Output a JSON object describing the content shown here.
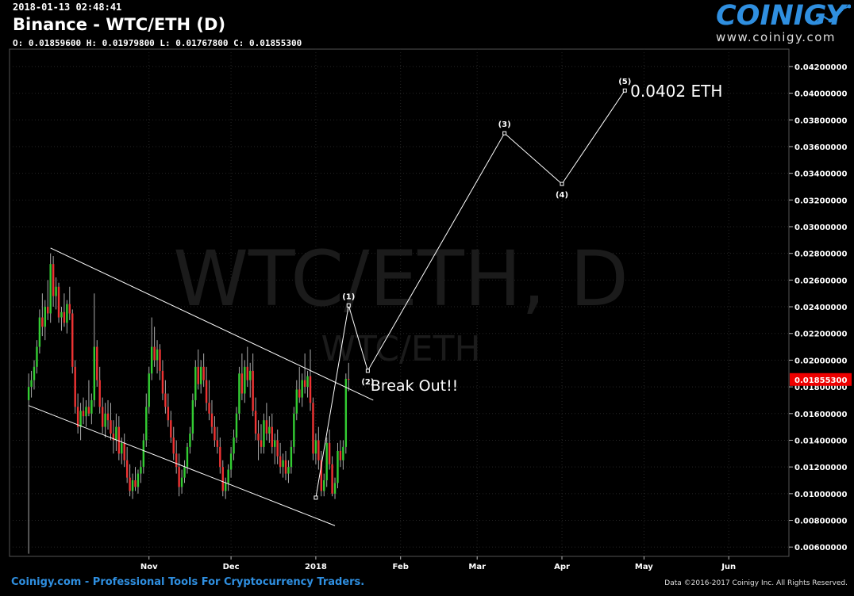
{
  "header": {
    "timestamp": "2018-01-13 02:48:41",
    "title": "Binance - WTC/ETH (D)",
    "ohlc": "O: 0.01859600 H: 0.01979800 L: 0.01767800 C: 0.01855300"
  },
  "logo": {
    "word": "COINIGY",
    "url": "www.coinigy.com"
  },
  "watermark": {
    "main": "WTC/ETH, D",
    "sub": "WTC/ETH"
  },
  "footer": {
    "left": "Coinigy.com - Professional Tools For Cryptocurrency Traders.",
    "right": "Data ©2016-2017 Coinigy Inc. All Rights Reserved."
  },
  "colors": {
    "up": "#33cc33",
    "down": "#ee3333",
    "brand": "#2f8fe0",
    "price_tag": "#ee0000"
  },
  "chart_data": {
    "type": "candlestick",
    "y_axis": {
      "ticks": [
        0.006,
        0.008,
        0.01,
        0.012,
        0.014,
        0.016,
        0.018,
        0.02,
        0.022,
        0.024,
        0.026,
        0.028,
        0.03,
        0.032,
        0.034,
        0.036,
        0.038,
        0.04,
        0.042
      ],
      "tick_labels": [
        "0.00600000",
        "0.00800000",
        "0.01000000",
        "0.01200000",
        "0.01400000",
        "0.01600000",
        "0.01800000",
        "0.02000000",
        "0.02200000",
        "0.02400000",
        "0.02600000",
        "0.02800000",
        "0.03000000",
        "0.03200000",
        "0.03400000",
        "0.03600000",
        "0.03800000",
        "0.04000000",
        "0.04200000"
      ],
      "range": [
        0.0053,
        0.0433
      ]
    },
    "x_axis": {
      "tick_labels": [
        "Nov",
        "Dec",
        "2018",
        "Feb",
        "Mar",
        "Apr",
        "May",
        "Jun"
      ],
      "tick_dates": [
        "2017-11-01",
        "2017-12-01",
        "2018-01-01",
        "2018-02-01",
        "2018-03-01",
        "2018-04-01",
        "2018-05-01",
        "2018-06-01"
      ],
      "range": [
        "2017-09-11",
        "2018-06-23"
      ]
    },
    "last_price": {
      "value": 0.018553,
      "label": "0.01855300"
    },
    "candles": [
      {
        "d": "2017-09-18",
        "o": 0.017,
        "h": 0.019,
        "l": 0.0055,
        "c": 0.018
      },
      {
        "d": "2017-09-19",
        "o": 0.018,
        "h": 0.0192,
        "l": 0.0172,
        "c": 0.0185
      },
      {
        "d": "2017-09-20",
        "o": 0.0185,
        "h": 0.02,
        "l": 0.0178,
        "c": 0.0195
      },
      {
        "d": "2017-09-21",
        "o": 0.0195,
        "h": 0.0215,
        "l": 0.019,
        "c": 0.021
      },
      {
        "d": "2017-09-22",
        "o": 0.021,
        "h": 0.0238,
        "l": 0.0205,
        "c": 0.0232
      },
      {
        "d": "2017-09-23",
        "o": 0.0232,
        "h": 0.025,
        "l": 0.0218,
        "c": 0.0225
      },
      {
        "d": "2017-09-24",
        "o": 0.0225,
        "h": 0.0245,
        "l": 0.0215,
        "c": 0.024
      },
      {
        "d": "2017-09-25",
        "o": 0.024,
        "h": 0.026,
        "l": 0.023,
        "c": 0.0235
      },
      {
        "d": "2017-09-26",
        "o": 0.0235,
        "h": 0.028,
        "l": 0.0228,
        "c": 0.0272
      },
      {
        "d": "2017-09-27",
        "o": 0.0272,
        "h": 0.0278,
        "l": 0.024,
        "c": 0.0248
      },
      {
        "d": "2017-09-28",
        "o": 0.0248,
        "h": 0.0262,
        "l": 0.0238,
        "c": 0.0255
      },
      {
        "d": "2017-09-29",
        "o": 0.0255,
        "h": 0.0258,
        "l": 0.0228,
        "c": 0.0232
      },
      {
        "d": "2017-09-30",
        "o": 0.0232,
        "h": 0.024,
        "l": 0.0222,
        "c": 0.0236
      },
      {
        "d": "2017-10-01",
        "o": 0.0236,
        "h": 0.025,
        "l": 0.0225,
        "c": 0.0228
      },
      {
        "d": "2017-10-02",
        "o": 0.0228,
        "h": 0.0245,
        "l": 0.022,
        "c": 0.0242
      },
      {
        "d": "2017-10-03",
        "o": 0.0242,
        "h": 0.0255,
        "l": 0.023,
        "c": 0.0235
      },
      {
        "d": "2017-10-04",
        "o": 0.0235,
        "h": 0.0238,
        "l": 0.019,
        "c": 0.0195
      },
      {
        "d": "2017-10-05",
        "o": 0.0195,
        "h": 0.02,
        "l": 0.016,
        "c": 0.0165
      },
      {
        "d": "2017-10-06",
        "o": 0.0165,
        "h": 0.0175,
        "l": 0.0145,
        "c": 0.015
      },
      {
        "d": "2017-10-07",
        "o": 0.015,
        "h": 0.0168,
        "l": 0.014,
        "c": 0.0162
      },
      {
        "d": "2017-10-08",
        "o": 0.0162,
        "h": 0.0172,
        "l": 0.0152,
        "c": 0.0158
      },
      {
        "d": "2017-10-09",
        "o": 0.0158,
        "h": 0.017,
        "l": 0.015,
        "c": 0.0165
      },
      {
        "d": "2017-10-10",
        "o": 0.0165,
        "h": 0.0185,
        "l": 0.0158,
        "c": 0.016
      },
      {
        "d": "2017-10-11",
        "o": 0.016,
        "h": 0.0175,
        "l": 0.0152,
        "c": 0.017
      },
      {
        "d": "2017-10-12",
        "o": 0.017,
        "h": 0.025,
        "l": 0.0165,
        "c": 0.021
      },
      {
        "d": "2017-10-13",
        "o": 0.021,
        "h": 0.0215,
        "l": 0.018,
        "c": 0.0185
      },
      {
        "d": "2017-10-14",
        "o": 0.0185,
        "h": 0.0195,
        "l": 0.016,
        "c": 0.0165
      },
      {
        "d": "2017-10-15",
        "o": 0.0165,
        "h": 0.0172,
        "l": 0.0145,
        "c": 0.015
      },
      {
        "d": "2017-10-16",
        "o": 0.015,
        "h": 0.0168,
        "l": 0.0142,
        "c": 0.016
      },
      {
        "d": "2017-10-17",
        "o": 0.016,
        "h": 0.017,
        "l": 0.0148,
        "c": 0.0155
      },
      {
        "d": "2017-10-18",
        "o": 0.0155,
        "h": 0.0168,
        "l": 0.014,
        "c": 0.0145
      },
      {
        "d": "2017-10-19",
        "o": 0.0145,
        "h": 0.0155,
        "l": 0.013,
        "c": 0.014
      },
      {
        "d": "2017-10-20",
        "o": 0.014,
        "h": 0.016,
        "l": 0.0132,
        "c": 0.015
      },
      {
        "d": "2017-10-21",
        "o": 0.015,
        "h": 0.0158,
        "l": 0.0125,
        "c": 0.013
      },
      {
        "d": "2017-10-22",
        "o": 0.013,
        "h": 0.0142,
        "l": 0.0122,
        "c": 0.0138
      },
      {
        "d": "2017-10-23",
        "o": 0.0138,
        "h": 0.0145,
        "l": 0.012,
        "c": 0.0125
      },
      {
        "d": "2017-10-24",
        "o": 0.0125,
        "h": 0.0135,
        "l": 0.0108,
        "c": 0.0112
      },
      {
        "d": "2017-10-25",
        "o": 0.0112,
        "h": 0.0122,
        "l": 0.0098,
        "c": 0.0102
      },
      {
        "d": "2017-10-26",
        "o": 0.0102,
        "h": 0.0115,
        "l": 0.0096,
        "c": 0.011
      },
      {
        "d": "2017-10-27",
        "o": 0.011,
        "h": 0.012,
        "l": 0.0102,
        "c": 0.0105
      },
      {
        "d": "2017-10-28",
        "o": 0.0105,
        "h": 0.0118,
        "l": 0.01,
        "c": 0.0115
      },
      {
        "d": "2017-10-29",
        "o": 0.0115,
        "h": 0.0125,
        "l": 0.0108,
        "c": 0.012
      },
      {
        "d": "2017-10-30",
        "o": 0.012,
        "h": 0.0145,
        "l": 0.0115,
        "c": 0.014
      },
      {
        "d": "2017-10-31",
        "o": 0.014,
        "h": 0.0175,
        "l": 0.0135,
        "c": 0.0165
      },
      {
        "d": "2017-11-01",
        "o": 0.0165,
        "h": 0.0195,
        "l": 0.016,
        "c": 0.019
      },
      {
        "d": "2017-11-02",
        "o": 0.019,
        "h": 0.0232,
        "l": 0.0185,
        "c": 0.021
      },
      {
        "d": "2017-11-03",
        "o": 0.021,
        "h": 0.0225,
        "l": 0.0195,
        "c": 0.02
      },
      {
        "d": "2017-11-04",
        "o": 0.02,
        "h": 0.0215,
        "l": 0.019,
        "c": 0.0208
      },
      {
        "d": "2017-11-05",
        "o": 0.0208,
        "h": 0.0212,
        "l": 0.0185,
        "c": 0.0192
      },
      {
        "d": "2017-11-06",
        "o": 0.0192,
        "h": 0.02,
        "l": 0.017,
        "c": 0.0175
      },
      {
        "d": "2017-11-07",
        "o": 0.0175,
        "h": 0.0185,
        "l": 0.016,
        "c": 0.0165
      },
      {
        "d": "2017-11-08",
        "o": 0.0165,
        "h": 0.0175,
        "l": 0.015,
        "c": 0.0155
      },
      {
        "d": "2017-11-09",
        "o": 0.0155,
        "h": 0.0162,
        "l": 0.0138,
        "c": 0.0142
      },
      {
        "d": "2017-11-10",
        "o": 0.0142,
        "h": 0.015,
        "l": 0.0125,
        "c": 0.013
      },
      {
        "d": "2017-11-11",
        "o": 0.013,
        "h": 0.014,
        "l": 0.0115,
        "c": 0.012
      },
      {
        "d": "2017-11-12",
        "o": 0.012,
        "h": 0.013,
        "l": 0.0098,
        "c": 0.0105
      },
      {
        "d": "2017-11-13",
        "o": 0.0105,
        "h": 0.0118,
        "l": 0.01,
        "c": 0.0112
      },
      {
        "d": "2017-11-14",
        "o": 0.0112,
        "h": 0.0125,
        "l": 0.0108,
        "c": 0.012
      },
      {
        "d": "2017-11-15",
        "o": 0.012,
        "h": 0.0138,
        "l": 0.0115,
        "c": 0.0135
      },
      {
        "d": "2017-11-16",
        "o": 0.0135,
        "h": 0.015,
        "l": 0.013,
        "c": 0.0145
      },
      {
        "d": "2017-11-17",
        "o": 0.0145,
        "h": 0.0175,
        "l": 0.014,
        "c": 0.017
      },
      {
        "d": "2017-11-18",
        "o": 0.017,
        "h": 0.02,
        "l": 0.0165,
        "c": 0.0195
      },
      {
        "d": "2017-11-19",
        "o": 0.0195,
        "h": 0.0208,
        "l": 0.0178,
        "c": 0.0182
      },
      {
        "d": "2017-11-20",
        "o": 0.0182,
        "h": 0.02,
        "l": 0.0175,
        "c": 0.0195
      },
      {
        "d": "2017-11-21",
        "o": 0.0195,
        "h": 0.0205,
        "l": 0.018,
        "c": 0.0185
      },
      {
        "d": "2017-11-22",
        "o": 0.0185,
        "h": 0.0195,
        "l": 0.0162,
        "c": 0.0168
      },
      {
        "d": "2017-11-23",
        "o": 0.0168,
        "h": 0.0185,
        "l": 0.0155,
        "c": 0.016
      },
      {
        "d": "2017-11-24",
        "o": 0.016,
        "h": 0.017,
        "l": 0.0145,
        "c": 0.015
      },
      {
        "d": "2017-11-25",
        "o": 0.015,
        "h": 0.0158,
        "l": 0.0135,
        "c": 0.014
      },
      {
        "d": "2017-11-26",
        "o": 0.014,
        "h": 0.015,
        "l": 0.013,
        "c": 0.0135
      },
      {
        "d": "2017-11-27",
        "o": 0.0135,
        "h": 0.0142,
        "l": 0.0115,
        "c": 0.012
      },
      {
        "d": "2017-11-28",
        "o": 0.012,
        "h": 0.0125,
        "l": 0.0098,
        "c": 0.0102
      },
      {
        "d": "2017-11-29",
        "o": 0.0102,
        "h": 0.0112,
        "l": 0.0096,
        "c": 0.0108
      },
      {
        "d": "2017-11-30",
        "o": 0.0108,
        "h": 0.0122,
        "l": 0.0102,
        "c": 0.0118
      },
      {
        "d": "2017-12-01",
        "o": 0.0118,
        "h": 0.0135,
        "l": 0.0112,
        "c": 0.013
      },
      {
        "d": "2017-12-02",
        "o": 0.013,
        "h": 0.0148,
        "l": 0.0125,
        "c": 0.0142
      },
      {
        "d": "2017-12-03",
        "o": 0.0142,
        "h": 0.0165,
        "l": 0.0138,
        "c": 0.016
      },
      {
        "d": "2017-12-04",
        "o": 0.016,
        "h": 0.0195,
        "l": 0.0155,
        "c": 0.019
      },
      {
        "d": "2017-12-05",
        "o": 0.019,
        "h": 0.0205,
        "l": 0.017,
        "c": 0.0175
      },
      {
        "d": "2017-12-06",
        "o": 0.0175,
        "h": 0.02,
        "l": 0.0168,
        "c": 0.0195
      },
      {
        "d": "2017-12-07",
        "o": 0.0195,
        "h": 0.021,
        "l": 0.018,
        "c": 0.0185
      },
      {
        "d": "2017-12-08",
        "o": 0.0185,
        "h": 0.0198,
        "l": 0.0172,
        "c": 0.0192
      },
      {
        "d": "2017-12-09",
        "o": 0.0192,
        "h": 0.0205,
        "l": 0.0158,
        "c": 0.0162
      },
      {
        "d": "2017-12-10",
        "o": 0.0162,
        "h": 0.0172,
        "l": 0.014,
        "c": 0.0145
      },
      {
        "d": "2017-12-11",
        "o": 0.0145,
        "h": 0.0155,
        "l": 0.0125,
        "c": 0.014
      },
      {
        "d": "2017-12-12",
        "o": 0.014,
        "h": 0.0152,
        "l": 0.013,
        "c": 0.0135
      },
      {
        "d": "2017-12-13",
        "o": 0.0135,
        "h": 0.016,
        "l": 0.013,
        "c": 0.0155
      },
      {
        "d": "2017-12-14",
        "o": 0.0155,
        "h": 0.0168,
        "l": 0.014,
        "c": 0.0145
      },
      {
        "d": "2017-12-15",
        "o": 0.0145,
        "h": 0.0158,
        "l": 0.0138,
        "c": 0.015
      },
      {
        "d": "2017-12-16",
        "o": 0.015,
        "h": 0.016,
        "l": 0.013,
        "c": 0.0135
      },
      {
        "d": "2017-12-17",
        "o": 0.0135,
        "h": 0.0145,
        "l": 0.0122,
        "c": 0.014
      },
      {
        "d": "2017-12-18",
        "o": 0.014,
        "h": 0.0148,
        "l": 0.0122,
        "c": 0.0128
      },
      {
        "d": "2017-12-19",
        "o": 0.0128,
        "h": 0.0138,
        "l": 0.0115,
        "c": 0.012
      },
      {
        "d": "2017-12-20",
        "o": 0.012,
        "h": 0.013,
        "l": 0.0112,
        "c": 0.0125
      },
      {
        "d": "2017-12-21",
        "o": 0.0125,
        "h": 0.0132,
        "l": 0.011,
        "c": 0.0115
      },
      {
        "d": "2017-12-22",
        "o": 0.0115,
        "h": 0.0125,
        "l": 0.0108,
        "c": 0.012
      },
      {
        "d": "2017-12-23",
        "o": 0.012,
        "h": 0.014,
        "l": 0.0115,
        "c": 0.0135
      },
      {
        "d": "2017-12-24",
        "o": 0.0135,
        "h": 0.0165,
        "l": 0.013,
        "c": 0.016
      },
      {
        "d": "2017-12-25",
        "o": 0.016,
        "h": 0.0185,
        "l": 0.0155,
        "c": 0.0178
      },
      {
        "d": "2017-12-26",
        "o": 0.0178,
        "h": 0.0195,
        "l": 0.0168,
        "c": 0.0172
      },
      {
        "d": "2017-12-27",
        "o": 0.0172,
        "h": 0.019,
        "l": 0.0165,
        "c": 0.0185
      },
      {
        "d": "2017-12-28",
        "o": 0.0185,
        "h": 0.0205,
        "l": 0.0175,
        "c": 0.018
      },
      {
        "d": "2017-12-29",
        "o": 0.018,
        "h": 0.0192,
        "l": 0.0172,
        "c": 0.0188
      },
      {
        "d": "2017-12-30",
        "o": 0.0188,
        "h": 0.0208,
        "l": 0.0162,
        "c": 0.0168
      },
      {
        "d": "2017-12-31",
        "o": 0.0168,
        "h": 0.0172,
        "l": 0.0125,
        "c": 0.013
      },
      {
        "d": "2018-01-01",
        "o": 0.013,
        "h": 0.0145,
        "l": 0.0122,
        "c": 0.014
      },
      {
        "d": "2018-01-02",
        "o": 0.014,
        "h": 0.015,
        "l": 0.0118,
        "c": 0.0125
      },
      {
        "d": "2018-01-03",
        "o": 0.0125,
        "h": 0.0132,
        "l": 0.0098,
        "c": 0.0102
      },
      {
        "d": "2018-01-04",
        "o": 0.0102,
        "h": 0.0115,
        "l": 0.0098,
        "c": 0.011
      },
      {
        "d": "2018-01-05",
        "o": 0.011,
        "h": 0.0142,
        "l": 0.0105,
        "c": 0.0138
      },
      {
        "d": "2018-01-06",
        "o": 0.0138,
        "h": 0.0148,
        "l": 0.0118,
        "c": 0.0122
      },
      {
        "d": "2018-01-07",
        "o": 0.0122,
        "h": 0.0128,
        "l": 0.0098,
        "c": 0.01
      },
      {
        "d": "2018-01-08",
        "o": 0.01,
        "h": 0.0112,
        "l": 0.0096,
        "c": 0.0108
      },
      {
        "d": "2018-01-09",
        "o": 0.0108,
        "h": 0.0138,
        "l": 0.0104,
        "c": 0.0132
      },
      {
        "d": "2018-01-10",
        "o": 0.0132,
        "h": 0.014,
        "l": 0.012,
        "c": 0.0125
      },
      {
        "d": "2018-01-11",
        "o": 0.0125,
        "h": 0.014,
        "l": 0.0118,
        "c": 0.0135
      },
      {
        "d": "2018-01-12",
        "o": 0.0135,
        "h": 0.019,
        "l": 0.013,
        "c": 0.0186
      },
      {
        "d": "2018-01-13",
        "o": 0.018596,
        "h": 0.019798,
        "l": 0.017678,
        "c": 0.018553
      }
    ],
    "channel_lines": [
      [
        {
          "d": "2017-09-26",
          "p": 0.0284
        },
        {
          "d": "2018-01-22",
          "p": 0.017
        }
      ],
      [
        {
          "d": "2017-09-18",
          "p": 0.0166
        },
        {
          "d": "2018-01-08",
          "p": 0.0076
        }
      ]
    ],
    "wave_path": [
      {
        "d": "2018-01-01",
        "p": 0.0097
      },
      {
        "d": "2018-01-13",
        "p": 0.0241,
        "label": "(1)"
      },
      {
        "d": "2018-01-20",
        "p": 0.0192,
        "label": "(2)"
      },
      {
        "d": "2018-03-11",
        "p": 0.037,
        "label": "(3)"
      },
      {
        "d": "2018-04-01",
        "p": 0.0332,
        "label": "(4)"
      },
      {
        "d": "2018-04-24",
        "p": 0.0402,
        "label": "(5)"
      }
    ],
    "annotations": [
      {
        "text": "0.0402 ETH",
        "d": "2018-04-26",
        "p": 0.0402
      },
      {
        "text": "Break Out!!",
        "d": "2018-01-21",
        "p": 0.0183
      }
    ]
  }
}
